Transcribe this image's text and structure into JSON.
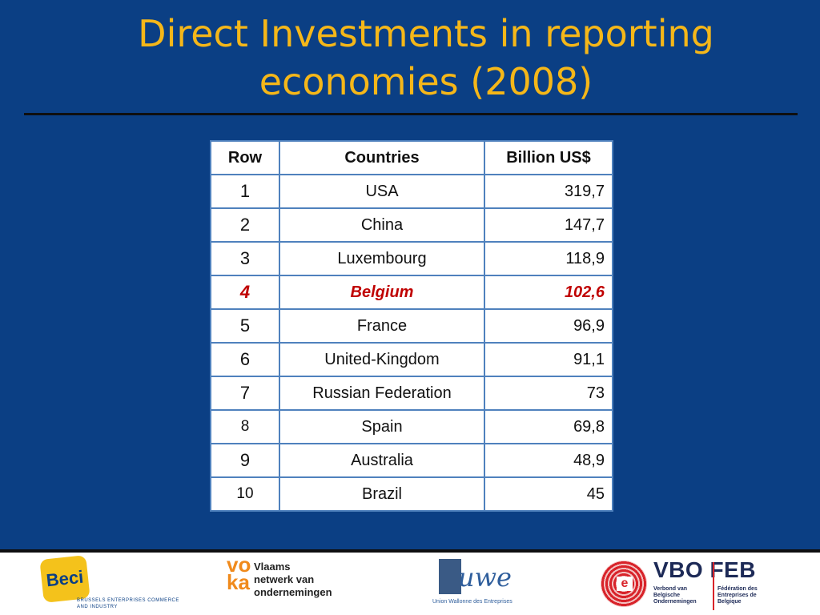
{
  "slide": {
    "title_line1": "Direct Investments in reporting",
    "title_line2": "economies (2008)",
    "title_color": "#f5b719",
    "background_color": "#0b3f84",
    "highlight_color": "#c00000"
  },
  "table": {
    "headers": [
      "Row",
      "Countries",
      "Billion US$"
    ],
    "rows": [
      {
        "row": "1",
        "country": "USA",
        "value": "319,7"
      },
      {
        "row": "2",
        "country": "China",
        "value": "147,7"
      },
      {
        "row": "3",
        "country": "Luxembourg",
        "value": "118,9"
      },
      {
        "row": "4",
        "country": "Belgium",
        "value": "102,6"
      },
      {
        "row": "5",
        "country": "France",
        "value": "96,9"
      },
      {
        "row": "6",
        "country": "United-Kingdom",
        "value": "91,1"
      },
      {
        "row": "7",
        "country": "Russian Federation",
        "value": "73"
      },
      {
        "row": "8",
        "country": "Spain",
        "value": "69,8"
      },
      {
        "row": "9",
        "country": "Australia",
        "value": "48,9"
      },
      {
        "row": "10",
        "country": "Brazil",
        "value": "45"
      }
    ]
  },
  "logos": {
    "beci": {
      "mark": "Beci",
      "sub": "BRUSSELS ENTERPRISES COMMERCE AND INDUSTRY"
    },
    "voka": {
      "mark": "vo ka",
      "line1": "Vlaams",
      "line2": "netwerk van",
      "line3": "ondernemingen"
    },
    "uwe": {
      "mark": "uwe",
      "sub": "Union Wallonne des Entreprises"
    },
    "vbofeb": {
      "head": "VBO FEB",
      "left1": "Verbond van",
      "left2": "Belgische",
      "left3": "Ondernemingen",
      "right1": "Fédération des",
      "right2": "Entreprises de",
      "right3": "Belgique"
    }
  }
}
